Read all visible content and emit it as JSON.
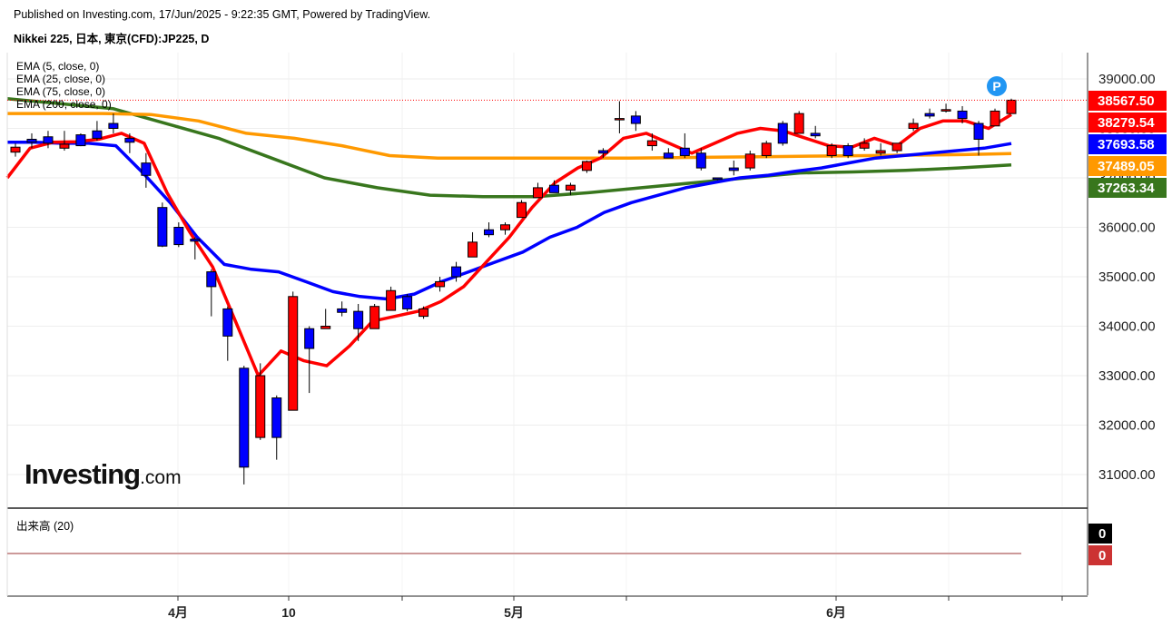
{
  "header": {
    "published": "Published on Investing.com, 17/Jun/2025 - 9:22:35 GMT, Powered by TradingView.",
    "symbol": "Nikkei 225, 日本, 東京(CFD):JP225, D"
  },
  "legend": [
    "EMA (5, close, 0)",
    "EMA (25, close, 0)",
    "EMA (75, close, 0)",
    "EMA (200, close, 0)"
  ],
  "volume": {
    "label": "出来高 (20)",
    "values": [
      "0",
      "0"
    ]
  },
  "logo": {
    "main": "Investing",
    "suffix": ".com"
  },
  "marker": "P",
  "colors": {
    "up": "#ff0000",
    "down": "#0000ff",
    "ema5": "#ff0000",
    "ema25": "#0000ff",
    "ema75": "#ff9900",
    "ema200": "#38761d",
    "vol_down": "#cc3333"
  },
  "chart_data": {
    "type": "candlestick",
    "title": "",
    "xlabel": "",
    "ylabel": "",
    "ylim": [
      30400,
      39500
    ],
    "yticks": [
      "39000.00",
      "38000.00",
      "37000.00",
      "36000.00",
      "35000.00",
      "34000.00",
      "33000.00",
      "32000.00",
      "31000.00"
    ],
    "x_tick_labels": [
      "4月",
      "10",
      "5月",
      "6月"
    ],
    "grid": true,
    "candles": [
      {
        "date": "2025-03-19",
        "o": 37520,
        "h": 37700,
        "l": 37430,
        "c": 37620
      },
      {
        "date": "2025-03-21",
        "o": 37780,
        "h": 37900,
        "l": 37600,
        "c": 37720
      },
      {
        "date": "2025-03-24",
        "o": 37830,
        "h": 37950,
        "l": 37600,
        "c": 37700
      },
      {
        "date": "2025-03-25",
        "o": 37600,
        "h": 37950,
        "l": 37550,
        "c": 37680
      },
      {
        "date": "2025-03-26",
        "o": 37870,
        "h": 37900,
        "l": 37640,
        "c": 37650
      },
      {
        "date": "2025-03-27",
        "o": 37950,
        "h": 38150,
        "l": 37750,
        "c": 37800
      },
      {
        "date": "2025-03-28",
        "o": 38100,
        "h": 38300,
        "l": 37900,
        "c": 38000
      },
      {
        "date": "2025-03-31",
        "o": 37800,
        "h": 37900,
        "l": 37500,
        "c": 37720
      },
      {
        "date": "2025-04-01",
        "o": 37300,
        "h": 37500,
        "l": 36800,
        "c": 37050
      },
      {
        "date": "2025-04-02",
        "o": 36400,
        "h": 36500,
        "l": 35600,
        "c": 35620
      },
      {
        "date": "2025-04-03",
        "o": 36000,
        "h": 36100,
        "l": 35600,
        "c": 35650
      },
      {
        "date": "2025-04-04",
        "o": 35760,
        "h": 35800,
        "l": 35350,
        "c": 35720
      },
      {
        "date": "2025-04-07",
        "o": 35100,
        "h": 35150,
        "l": 34200,
        "c": 34800
      },
      {
        "date": "2025-04-08",
        "o": 34350,
        "h": 34400,
        "l": 33300,
        "c": 33800
      },
      {
        "date": "2025-04-09",
        "o": 33150,
        "h": 33200,
        "l": 30800,
        "c": 31150
      },
      {
        "date": "2025-04-10",
        "o": 31750,
        "h": 33250,
        "l": 31700,
        "c": 33000
      },
      {
        "date": "2025-04-11",
        "o": 32550,
        "h": 32600,
        "l": 31300,
        "c": 31750
      },
      {
        "date": "2025-04-14",
        "o": 32300,
        "h": 34700,
        "l": 32300,
        "c": 34600
      },
      {
        "date": "2025-04-15",
        "o": 33950,
        "h": 34000,
        "l": 32650,
        "c": 33550
      },
      {
        "date": "2025-04-16",
        "o": 33950,
        "h": 34350,
        "l": 33950,
        "c": 34000
      },
      {
        "date": "2025-04-17",
        "o": 34350,
        "h": 34500,
        "l": 34200,
        "c": 34280
      },
      {
        "date": "2025-04-18",
        "o": 34300,
        "h": 34450,
        "l": 33700,
        "c": 33950
      },
      {
        "date": "2025-04-21",
        "o": 33950,
        "h": 34450,
        "l": 33950,
        "c": 34400
      },
      {
        "date": "2025-04-22",
        "o": 34320,
        "h": 34800,
        "l": 34320,
        "c": 34720
      },
      {
        "date": "2025-04-23",
        "o": 34600,
        "h": 34650,
        "l": 34300,
        "c": 34350
      },
      {
        "date": "2025-04-24",
        "o": 34200,
        "h": 34400,
        "l": 34150,
        "c": 34350
      },
      {
        "date": "2025-04-25",
        "o": 34800,
        "h": 35000,
        "l": 34700,
        "c": 34900
      },
      {
        "date": "2025-04-28",
        "o": 35200,
        "h": 35300,
        "l": 34900,
        "c": 35000
      },
      {
        "date": "2025-04-30",
        "o": 35400,
        "h": 35900,
        "l": 35400,
        "c": 35700
      },
      {
        "date": "2025-05-01",
        "o": 35950,
        "h": 36100,
        "l": 35800,
        "c": 35850
      },
      {
        "date": "2025-05-02",
        "o": 35950,
        "h": 36100,
        "l": 35850,
        "c": 36050
      },
      {
        "date": "2025-05-07",
        "o": 36200,
        "h": 36550,
        "l": 36200,
        "c": 36500
      },
      {
        "date": "2025-05-08",
        "o": 36600,
        "h": 36900,
        "l": 36600,
        "c": 36800
      },
      {
        "date": "2025-05-09",
        "o": 36850,
        "h": 36950,
        "l": 36700,
        "c": 36700
      },
      {
        "date": "2025-05-12",
        "o": 36750,
        "h": 36900,
        "l": 36650,
        "c": 36850
      },
      {
        "date": "2025-05-13",
        "o": 37150,
        "h": 37350,
        "l": 37100,
        "c": 37330
      },
      {
        "date": "2025-05-14",
        "o": 37550,
        "h": 37600,
        "l": 37400,
        "c": 37500
      },
      {
        "date": "2025-05-15",
        "o": 38200,
        "h": 38550,
        "l": 37900,
        "c": 38200
      },
      {
        "date": "2025-05-16",
        "o": 38250,
        "h": 38350,
        "l": 37950,
        "c": 38100
      },
      {
        "date": "2025-05-19",
        "o": 37650,
        "h": 37900,
        "l": 37550,
        "c": 37750
      },
      {
        "date": "2025-05-20",
        "o": 37500,
        "h": 37600,
        "l": 37400,
        "c": 37400
      },
      {
        "date": "2025-05-21",
        "o": 37600,
        "h": 37900,
        "l": 37400,
        "c": 37450
      },
      {
        "date": "2025-05-22",
        "o": 37500,
        "h": 37600,
        "l": 37150,
        "c": 37200
      },
      {
        "date": "2025-05-23",
        "o": 37000,
        "h": 37000,
        "l": 36950,
        "c": 36970
      },
      {
        "date": "2025-05-26",
        "o": 37200,
        "h": 37350,
        "l": 37050,
        "c": 37150
      },
      {
        "date": "2025-05-27",
        "o": 37200,
        "h": 37550,
        "l": 37150,
        "c": 37480
      },
      {
        "date": "2025-05-28",
        "o": 37450,
        "h": 37750,
        "l": 37400,
        "c": 37700
      },
      {
        "date": "2025-05-29",
        "o": 38100,
        "h": 38150,
        "l": 37650,
        "c": 37700
      },
      {
        "date": "2025-05-30",
        "o": 37900,
        "h": 38350,
        "l": 37900,
        "c": 38300
      },
      {
        "date": "2025-06-02",
        "o": 37900,
        "h": 38050,
        "l": 37800,
        "c": 37850
      },
      {
        "date": "2025-06-03",
        "o": 37450,
        "h": 37700,
        "l": 37400,
        "c": 37650
      },
      {
        "date": "2025-06-04",
        "o": 37650,
        "h": 37700,
        "l": 37400,
        "c": 37450
      },
      {
        "date": "2025-06-05",
        "o": 37600,
        "h": 37800,
        "l": 37550,
        "c": 37700
      },
      {
        "date": "2025-06-06",
        "o": 37500,
        "h": 37700,
        "l": 37450,
        "c": 37550
      },
      {
        "date": "2025-06-09",
        "o": 37550,
        "h": 37700,
        "l": 37500,
        "c": 37700
      },
      {
        "date": "2025-06-10",
        "o": 38000,
        "h": 38200,
        "l": 37950,
        "c": 38100
      },
      {
        "date": "2025-06-11",
        "o": 38300,
        "h": 38400,
        "l": 38200,
        "c": 38250
      },
      {
        "date": "2025-06-12",
        "o": 38350,
        "h": 38500,
        "l": 38320,
        "c": 38380
      },
      {
        "date": "2025-06-13",
        "o": 38350,
        "h": 38450,
        "l": 38100,
        "c": 38200
      },
      {
        "date": "2025-06-16",
        "o": 38100,
        "h": 38150,
        "l": 37450,
        "c": 37780
      },
      {
        "date": "2025-06-17",
        "o": 38050,
        "h": 38400,
        "l": 38050,
        "c": 38350
      },
      {
        "date": "2025-06-18",
        "o": 38300,
        "h": 38600,
        "l": 38300,
        "c": 38570
      }
    ],
    "series": [
      {
        "name": "EMA (5, close, 0)",
        "last": "38279.54",
        "values": [
          37000,
          37600,
          37720,
          37730,
          37780,
          37900,
          37700,
          36700,
          35900,
          35200,
          34100,
          33000,
          33500,
          33300,
          33200,
          33600,
          34100,
          34200,
          34300,
          34500,
          34800,
          35300,
          35800,
          36400,
          36900,
          37200,
          37400,
          37800,
          37900,
          37700,
          37500,
          37700,
          37900,
          38000,
          37950,
          37800,
          37650,
          37620,
          37800,
          37650,
          38000,
          38150,
          38150,
          38000,
          38280
        ]
      },
      {
        "name": "EMA (25, close, 0)",
        "last": "37693.58",
        "values": [
          37720,
          37720,
          37700,
          37700,
          37650,
          37100,
          36500,
          35800,
          35250,
          35150,
          35100,
          34900,
          34700,
          34600,
          34550,
          34650,
          34900,
          35100,
          35300,
          35500,
          35800,
          36000,
          36300,
          36500,
          36650,
          36800,
          36900,
          37000,
          37050,
          37130,
          37200,
          37300,
          37400,
          37450,
          37500,
          37550,
          37600,
          37693
        ]
      },
      {
        "name": "EMA (75, close, 0)",
        "last": "37489.05",
        "values": [
          38300,
          38300,
          38300,
          38280,
          38150,
          37900,
          37800,
          37650,
          37450,
          37400,
          37400,
          37400,
          37400,
          37400,
          37410,
          37420,
          37430,
          37440,
          37450,
          37460,
          37470,
          37489
        ]
      },
      {
        "name": "EMA (200, close, 0)",
        "last": "37263.34",
        "values": [
          38600,
          38500,
          38400,
          38100,
          37800,
          37400,
          37000,
          36800,
          36650,
          36620,
          36620,
          36700,
          36800,
          36900,
          37000,
          37100,
          37120,
          37150,
          37200,
          37263
        ]
      }
    ],
    "price_labels": [
      {
        "name": "Last",
        "value": "38567.50",
        "color": "#ff0000"
      },
      {
        "name": "EMA (5, close, 0)",
        "value": "38279.54",
        "color": "#ff0000"
      },
      {
        "name": "EMA (25, close, 0)",
        "value": "37693.58",
        "color": "#0000ff"
      },
      {
        "name": "EMA (75, close, 0)",
        "value": "37489.05",
        "color": "#ff9900"
      },
      {
        "name": "EMA (200, close, 0)",
        "value": "37263.34",
        "color": "#38761d"
      }
    ]
  }
}
